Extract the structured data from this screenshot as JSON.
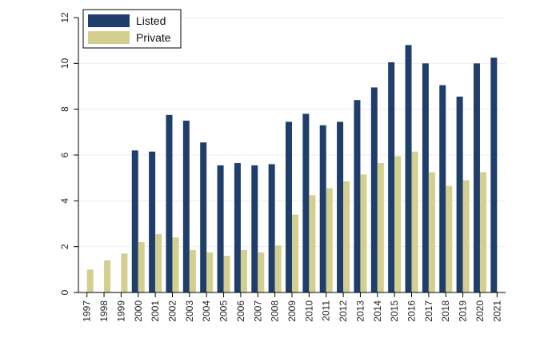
{
  "chart_data": {
    "type": "bar",
    "categories": [
      "1997",
      "1998",
      "1999",
      "2000",
      "2001",
      "2002",
      "2003",
      "2004",
      "2005",
      "2006",
      "2007",
      "2008",
      "2009",
      "2010",
      "2011",
      "2012",
      "2013",
      "2014",
      "2015",
      "2016",
      "2017",
      "2018",
      "2019",
      "2020",
      "2021"
    ],
    "series": [
      {
        "name": "Listed",
        "color": "#1f3e6b",
        "values": [
          null,
          null,
          null,
          6.2,
          6.15,
          7.75,
          7.5,
          6.55,
          5.55,
          5.65,
          5.55,
          5.6,
          7.45,
          7.8,
          7.3,
          7.45,
          8.4,
          8.95,
          10.05,
          10.8,
          10.0,
          9.05,
          8.55,
          10.0,
          10.25
        ]
      },
      {
        "name": "Private",
        "color": "#d4ce8f",
        "values": [
          1.0,
          1.4,
          1.7,
          2.2,
          2.55,
          2.4,
          1.85,
          1.75,
          1.6,
          1.85,
          1.75,
          2.05,
          3.4,
          4.25,
          4.55,
          4.85,
          5.15,
          5.65,
          5.95,
          6.15,
          5.25,
          4.65,
          4.9,
          5.25,
          null
        ]
      }
    ],
    "yticks": [
      0,
      2,
      4,
      6,
      8,
      10,
      12
    ],
    "ylim": [
      0,
      12
    ],
    "grid": true,
    "legend_position": "top-left",
    "title": "",
    "xlabel": "",
    "ylabel": ""
  }
}
